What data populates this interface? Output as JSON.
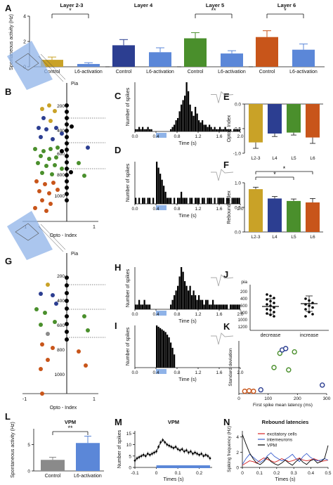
{
  "panel_labels": {
    "A": "A",
    "B": "B",
    "C": "C",
    "D": "D",
    "E": "E",
    "F": "F",
    "G": "G",
    "H": "H",
    "I": "I",
    "J": "J",
    "K": "K",
    "L": "L",
    "M": "M",
    "N": "N"
  },
  "colors": {
    "l23": "#c9a227",
    "l4": "#2c3e91",
    "l5": "#4a8f2c",
    "l6": "#c8551a",
    "l6act": "#5b87d8",
    "control_gray": "#8a8a8a",
    "opto": "#8fb3e8"
  },
  "shared": {
    "pia": "Pia",
    "opto_index": "Opto - Index",
    "time_s": "Time (s)",
    "num_spikes": "Number of spikes",
    "minus1": "-1",
    "one": "1"
  },
  "chart_data": [
    {
      "id": "A",
      "type": "bar",
      "ylabel": "Spontaneous activity (Hz)",
      "ylim": [
        0,
        4
      ],
      "groups": [
        {
          "title": "Layer 2-3",
          "categories": [
            "Control",
            "L6-activation"
          ],
          "values": [
            0.55,
            0.22
          ],
          "err": [
            0.22,
            0.1
          ],
          "sig": "*"
        },
        {
          "title": "Layer 4",
          "categories": [
            "Control",
            "L6-activation"
          ],
          "values": [
            1.7,
            1.15
          ],
          "err": [
            0.45,
            0.35
          ],
          "sig": ""
        },
        {
          "title": "Layer 5",
          "categories": [
            "Control",
            "L6-activation"
          ],
          "values": [
            2.25,
            1.05
          ],
          "err": [
            0.45,
            0.22
          ],
          "sig": "**"
        },
        {
          "title": "Layer 6",
          "categories": [
            "Control",
            "L6-activation"
          ],
          "values": [
            2.35,
            1.35
          ],
          "err": [
            0.5,
            0.45
          ],
          "sig": "*"
        }
      ],
      "yticks": [
        "0",
        "2",
        "4"
      ]
    },
    {
      "id": "E",
      "type": "bar",
      "ylabel": "Opto - Index",
      "ylim": [
        -1,
        0
      ],
      "categories": [
        "L2-3",
        "L4",
        "L5",
        "L6"
      ],
      "values": [
        -0.78,
        -0.6,
        -0.58,
        -0.68
      ],
      "err": [
        0.12,
        0.06,
        0.05,
        0.12
      ],
      "yticks": [
        "0.0",
        "-0.5",
        "-1.0"
      ]
    },
    {
      "id": "F",
      "type": "bar",
      "ylabel": "Rebound Index",
      "ylim": [
        0,
        1.0
      ],
      "categories": [
        "L2-3",
        "L4",
        "L5",
        "L6"
      ],
      "values": [
        0.87,
        0.68,
        0.63,
        0.6
      ],
      "err": [
        0.04,
        0.04,
        0.04,
        0.08
      ],
      "yticks": [
        "0.0",
        "0.5",
        "1.0"
      ]
    },
    {
      "id": "C",
      "type": "histogram",
      "xlabel": "Time (s)",
      "ylabel": "Number of spikes",
      "xticks": [
        "0.0",
        "0.4",
        "0.8",
        "1.2",
        "1.6",
        "2.0"
      ],
      "counts": [
        1,
        1,
        2,
        1,
        2,
        1,
        1,
        2,
        1,
        1,
        0,
        0,
        0,
        0,
        0,
        0,
        0,
        0,
        0,
        0,
        1,
        2,
        3,
        5,
        6,
        9,
        12,
        14,
        16,
        22,
        18,
        12,
        9,
        7,
        11,
        8,
        5,
        4,
        5,
        3,
        3,
        2,
        3,
        2,
        1,
        2,
        1,
        1,
        2,
        1,
        1,
        2,
        1,
        1,
        1,
        0,
        1,
        1,
        1,
        1
      ]
    },
    {
      "id": "D",
      "type": "histogram",
      "xlabel": "Time (s)",
      "ylabel": "Number of spikes",
      "xticks": [
        "0.0",
        "0.4",
        "0.8",
        "1.2",
        "1.6",
        "2.0"
      ],
      "counts": [
        1,
        0,
        1,
        0,
        1,
        1,
        0,
        1,
        1,
        0,
        1,
        0,
        7,
        6,
        5,
        4,
        3,
        2,
        1,
        1,
        1,
        0,
        1,
        0,
        1,
        1,
        2,
        1,
        1,
        1,
        0,
        1,
        1,
        0,
        1,
        1,
        1,
        0,
        1,
        1,
        0,
        1,
        1,
        1,
        0,
        1,
        0,
        1,
        1,
        1,
        1,
        0,
        1,
        1,
        0,
        1,
        1,
        1,
        1,
        1
      ]
    },
    {
      "id": "H",
      "type": "histogram",
      "xlabel": "Time (s)",
      "ylabel": "Number of spikes",
      "xticks": [
        "0.0",
        "0.4",
        "0.8",
        "1.2",
        "1.6",
        "2.0"
      ],
      "counts": [
        1,
        1,
        2,
        1,
        1,
        2,
        1,
        1,
        1,
        0,
        0,
        0,
        0,
        0,
        0,
        0,
        0,
        0,
        0,
        0,
        1,
        2,
        3,
        4,
        5,
        7,
        9,
        8,
        6,
        5,
        4,
        5,
        3,
        4,
        3,
        2,
        3,
        2,
        2,
        1,
        2,
        2,
        1,
        1,
        2,
        1,
        1,
        1,
        1,
        1,
        1,
        1,
        1,
        0,
        1,
        1,
        1,
        1,
        1,
        1
      ]
    },
    {
      "id": "I",
      "type": "histogram",
      "xlabel": "Time (s)",
      "ylabel": "Number of spikes",
      "xticks": [
        "0.0",
        "0.4",
        "0.8",
        "1.2",
        "1.6",
        "2.0"
      ],
      "counts": [
        0,
        0,
        0,
        0,
        0,
        0,
        0,
        0,
        0,
        0,
        0,
        0,
        32,
        31,
        30,
        29,
        28,
        27,
        25,
        23,
        19,
        15,
        10,
        0,
        0,
        0,
        0,
        0,
        0,
        0,
        0,
        0,
        0,
        0,
        0,
        0,
        0,
        0,
        0,
        0,
        0,
        0,
        0,
        0,
        0,
        0,
        0,
        0,
        0,
        0,
        0,
        0,
        0,
        0,
        0,
        0,
        0,
        0,
        0,
        0
      ]
    },
    {
      "id": "J",
      "type": "scatter",
      "ylabel": "pia",
      "categories": [
        "decrease",
        "increase"
      ],
      "yticks": [
        "200",
        "400",
        "600",
        "800",
        "1000",
        "1200"
      ],
      "decrease": [
        280,
        320,
        380,
        420,
        470,
        520,
        560,
        600,
        650,
        700,
        720,
        780,
        820,
        860,
        900
      ],
      "increase": [
        400,
        450,
        520,
        560,
        600,
        650,
        700,
        780,
        840,
        900
      ],
      "decrease_mean": 620,
      "increase_mean": 540
    },
    {
      "id": "K",
      "type": "scatter",
      "xlabel": "First spike mean latency (ms)",
      "ylabel": "Standard deviation",
      "xlim": [
        0,
        300
      ],
      "xticks": [
        "0",
        "100",
        "200",
        "300"
      ],
      "points": [
        {
          "x": 20,
          "y": 5,
          "c": "l6"
        },
        {
          "x": 35,
          "y": 6,
          "c": "l6"
        },
        {
          "x": 50,
          "y": 5,
          "c": "l6"
        },
        {
          "x": 75,
          "y": 8,
          "c": "l4"
        },
        {
          "x": 120,
          "y": 55,
          "c": "l5"
        },
        {
          "x": 140,
          "y": 85,
          "c": "l5"
        },
        {
          "x": 148,
          "y": 92,
          "c": "l4"
        },
        {
          "x": 160,
          "y": 95,
          "c": "l4"
        },
        {
          "x": 170,
          "y": 50,
          "c": "l5"
        },
        {
          "x": 190,
          "y": 88,
          "c": "l5"
        },
        {
          "x": 285,
          "y": 18,
          "c": "l4"
        }
      ]
    },
    {
      "id": "L",
      "type": "bar",
      "title": "VPM",
      "ylabel": "Spontaneous activity (Hz)",
      "ylim": [
        0,
        8
      ],
      "categories": [
        "Control",
        "L6-activation"
      ],
      "values": [
        2.1,
        5.3
      ],
      "err": [
        0.5,
        1.3
      ],
      "sig": "**",
      "yticks": [
        "0",
        "5"
      ]
    },
    {
      "id": "M",
      "type": "line",
      "title": "VPM",
      "xlabel": "Times (s)",
      "ylabel": "Number of spikes",
      "xticks": [
        "-0.1",
        "0",
        "0.1",
        "0.2"
      ],
      "yticks": [
        "0",
        "5",
        "10",
        "15"
      ],
      "x": [
        -0.1,
        -0.09,
        -0.08,
        -0.07,
        -0.06,
        -0.05,
        -0.04,
        -0.03,
        -0.02,
        -0.01,
        0,
        0.01,
        0.02,
        0.03,
        0.04,
        0.05,
        0.06,
        0.07,
        0.08,
        0.09,
        0.1,
        0.11,
        0.12,
        0.13,
        0.14,
        0.15,
        0.16,
        0.17,
        0.18,
        0.19,
        0.2,
        0.21,
        0.22,
        0.23,
        0.24,
        0.25
      ],
      "y": [
        3,
        4,
        4.5,
        5,
        5.5,
        5,
        6,
        5.5,
        6,
        6.5,
        7,
        9,
        11,
        12,
        11,
        10,
        9.5,
        9,
        8.5,
        9,
        8,
        7.5,
        8,
        7,
        7.5,
        6.5,
        7,
        6,
        6.5,
        6,
        5.5,
        6,
        5,
        5.5,
        5,
        4
      ]
    },
    {
      "id": "N",
      "type": "line",
      "title": "Rebound latencies",
      "xlabel": "Times (s)",
      "ylabel": "Spiking frequency (Hz)",
      "xticks": [
        "0",
        "0.1",
        "0.2",
        "0.3",
        "0.4",
        "0.5"
      ],
      "yticks": [
        "0",
        "2",
        "4"
      ],
      "series": [
        {
          "name": "excitatory cells",
          "c": "red",
          "y": [
            0.3,
            0.6,
            0.9,
            0.8,
            0.6,
            1.0,
            1.3,
            1.1,
            0.9,
            0.7,
            0.9,
            1.2,
            1.0,
            0.8,
            0.9,
            1.1,
            1.3,
            1.0,
            0.9,
            1.0,
            1.2,
            1.0,
            0.8,
            0.9,
            1.0
          ]
        },
        {
          "name": "interneurons",
          "c": "blue",
          "y": [
            0.4,
            1.2,
            1.8,
            1.4,
            1.0,
            0.7,
            1.0,
            1.6,
            2.0,
            1.5,
            1.2,
            0.9,
            1.1,
            1.4,
            1.8,
            1.2,
            0.8,
            1.5,
            1.9,
            1.4,
            1.1,
            0.9,
            1.0,
            1.2,
            1.0
          ]
        },
        {
          "name": "VPM",
          "c": "black",
          "y": [
            4.5,
            3.2,
            2.0,
            1.2,
            0.6,
            0.4,
            0.8,
            1.4,
            0.8,
            0.5,
            0.3,
            0.6,
            1.0,
            0.6,
            0.3,
            0.8,
            1.2,
            0.7,
            0.4,
            0.9,
            1.1,
            0.6,
            0.8,
            1.2,
            3.0
          ]
        }
      ]
    }
  ]
}
